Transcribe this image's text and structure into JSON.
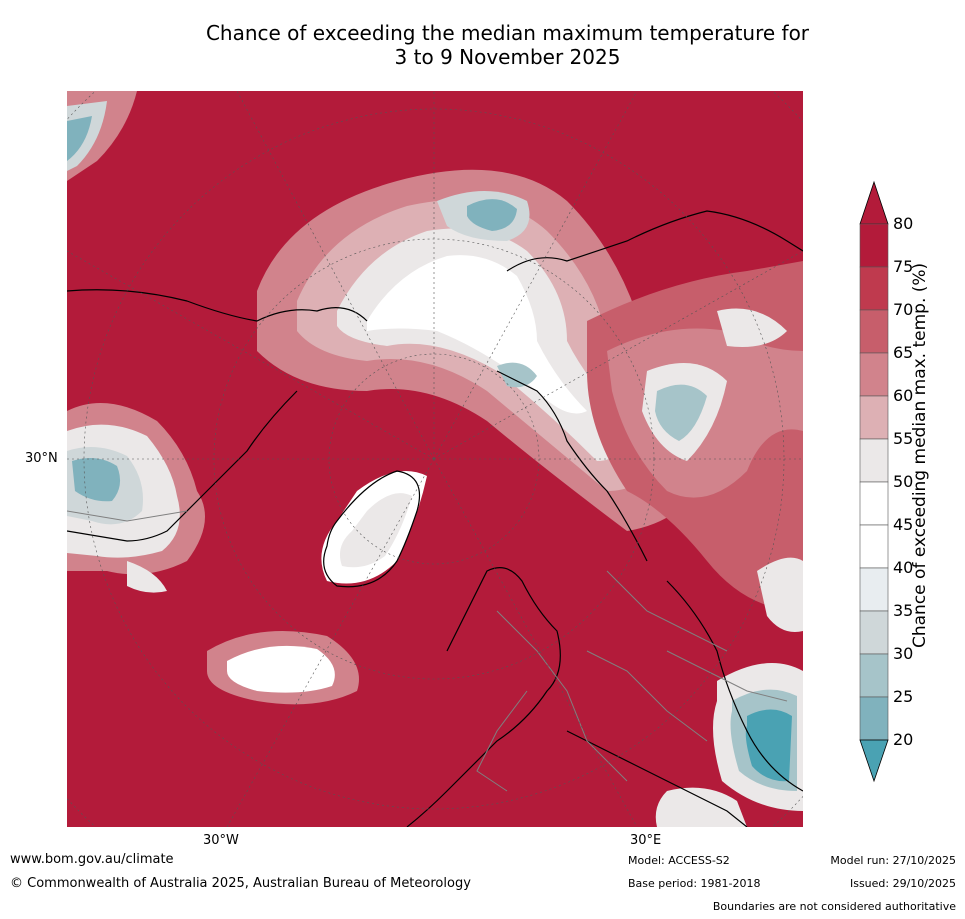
{
  "title": {
    "line1": "Chance of exceeding the median maximum temperature for",
    "line2": "3 to 9 November 2025"
  },
  "map": {
    "projection": "north-polar-stereographic",
    "graticule_labels": {
      "lat_30n": "30°N",
      "lon_30w": "30°W",
      "lon_30e": "30°E"
    }
  },
  "colorbar": {
    "label": "Chance of exceeding median max. temp. (%)",
    "ticks": [
      "80",
      "75",
      "70",
      "65",
      "60",
      "55",
      "50",
      "45",
      "40",
      "35",
      "30",
      "25",
      "20"
    ],
    "colors_top_to_bottom": [
      "#b31b3a",
      "#bf3a4e",
      "#c75e6b",
      "#d1838c",
      "#ddb0b4",
      "#ebe8e8",
      "#ffffff",
      "#ffffff",
      "#e8edf0",
      "#cfd7d9",
      "#a6c4c9",
      "#80b2bd",
      "#5ea6b2"
    ],
    "extend_high_color": "#b31b3a",
    "extend_low_color": "#4aa2b3"
  },
  "footer": {
    "url": "www.bom.gov.au/climate",
    "copyright": "© Commonwealth of Australia 2025, Australian Bureau of Meteorology",
    "model": "Model: ACCESS-S2",
    "base_period": "Base period: 1981-2018",
    "model_run": "Model run: 27/10/2025",
    "issued": "Issued: 29/10/2025",
    "disclaimer": "Boundaries are not considered authoritative"
  }
}
